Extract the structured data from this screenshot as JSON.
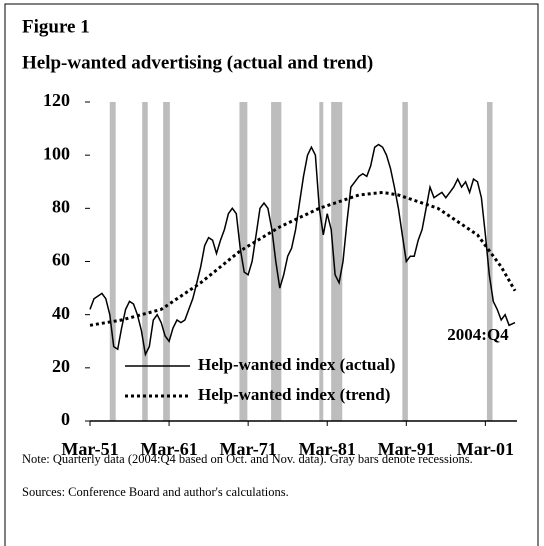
{
  "chart_data": {
    "type": "line",
    "label": "Figure 1",
    "title": "Help-wanted advertising (actual and trend)",
    "annotation": "2004:Q4",
    "note": "Note: Quarterly data (2004:Q4 based on Oct. and Nov. data). Gray bars denote recessions.",
    "sources": "Sources: Conference Board and author's calculations.",
    "xlim": [
      1951,
      2005
    ],
    "xticks": [
      {
        "value": 1951,
        "label": "Mar-51"
      },
      {
        "value": 1961,
        "label": "Mar-61"
      },
      {
        "value": 1971,
        "label": "Mar-71"
      },
      {
        "value": 1981,
        "label": "Mar-81"
      },
      {
        "value": 1991,
        "label": "Mar-91"
      },
      {
        "value": 2001,
        "label": "Mar-01"
      }
    ],
    "ylim": [
      0,
      120
    ],
    "yticks": [
      0,
      20,
      40,
      60,
      80,
      100,
      120
    ],
    "grid": false,
    "recession_color": "#bdbdbd",
    "recessions": [
      [
        1953.5,
        1954.25
      ],
      [
        1957.6,
        1958.3
      ],
      [
        1960.25,
        1961.1
      ],
      [
        1969.9,
        1970.9
      ],
      [
        1973.9,
        1975.2
      ],
      [
        1980.0,
        1980.5
      ],
      [
        1981.5,
        1982.9
      ],
      [
        1990.5,
        1991.2
      ],
      [
        2001.2,
        2001.9
      ]
    ],
    "series": [
      {
        "name": "Help-wanted index (actual)",
        "color": "#000000",
        "dash": "solid",
        "x": [
          1951,
          1951.5,
          1952,
          1952.5,
          1953,
          1953.5,
          1954,
          1954.5,
          1955,
          1955.5,
          1956,
          1956.5,
          1957,
          1957.5,
          1958,
          1958.5,
          1959,
          1959.5,
          1960,
          1960.5,
          1961,
          1961.5,
          1962,
          1962.5,
          1963,
          1963.5,
          1964,
          1964.5,
          1965,
          1965.5,
          1966,
          1966.5,
          1967,
          1967.5,
          1968,
          1968.5,
          1969,
          1969.5,
          1970,
          1970.5,
          1971,
          1971.5,
          1972,
          1972.5,
          1973,
          1973.5,
          1974,
          1974.5,
          1975,
          1975.5,
          1976,
          1976.5,
          1977,
          1977.5,
          1978,
          1978.5,
          1979,
          1979.5,
          1980,
          1980.5,
          1981,
          1981.5,
          1982,
          1982.5,
          1983,
          1983.5,
          1984,
          1984.5,
          1985,
          1985.5,
          1986,
          1986.5,
          1987,
          1987.5,
          1988,
          1988.5,
          1989,
          1989.5,
          1990,
          1990.5,
          1991,
          1991.5,
          1992,
          1992.5,
          1993,
          1993.5,
          1994,
          1994.5,
          1995,
          1995.5,
          1996,
          1996.5,
          1997,
          1997.5,
          1998,
          1998.5,
          1999,
          1999.5,
          2000,
          2000.5,
          2001,
          2001.5,
          2002,
          2002.5,
          2003,
          2003.5,
          2004,
          2004.75
        ],
        "values": [
          42,
          46,
          47,
          48,
          46,
          40,
          28,
          27,
          35,
          42,
          45,
          44,
          40,
          34,
          25,
          28,
          38,
          40,
          37,
          32,
          30,
          35,
          38,
          37,
          38,
          42,
          46,
          52,
          58,
          66,
          69,
          68,
          63,
          68,
          72,
          78,
          80,
          78,
          65,
          56,
          55,
          60,
          70,
          80,
          82,
          80,
          72,
          60,
          50,
          55,
          62,
          65,
          72,
          82,
          92,
          100,
          103,
          100,
          80,
          70,
          78,
          72,
          55,
          52,
          60,
          75,
          88,
          90,
          92,
          93,
          92,
          96,
          103,
          104,
          103,
          100,
          95,
          88,
          80,
          70,
          60,
          62,
          62,
          68,
          72,
          80,
          88,
          84,
          85,
          86,
          84,
          86,
          88,
          91,
          88,
          90,
          86,
          91,
          90,
          84,
          70,
          55,
          45,
          42,
          38,
          40,
          36,
          37
        ]
      },
      {
        "name": "Help-wanted index (trend)",
        "color": "#000000",
        "dash": "dotted",
        "x": [
          1951,
          1955,
          1960,
          1965,
          1970,
          1975,
          1980,
          1985,
          1988,
          1990,
          1995,
          2000,
          2003,
          2004.75
        ],
        "values": [
          36,
          38,
          42,
          52,
          64,
          73,
          80,
          85,
          86,
          85,
          80,
          70,
          58,
          49
        ]
      }
    ]
  }
}
